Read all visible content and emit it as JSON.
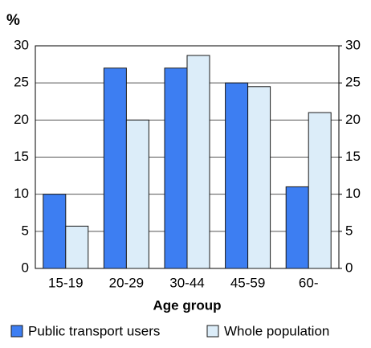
{
  "chart_data": {
    "type": "bar",
    "ylabel": "%",
    "xlabel": "Age group",
    "categories": [
      "15-19",
      "20-29",
      "30-44",
      "45-59",
      "60-"
    ],
    "series": [
      {
        "name": "Public transport users",
        "color": "#3d7ef2",
        "values": [
          10,
          27,
          27,
          25,
          11
        ]
      },
      {
        "name": "Whole population",
        "color": "#dcedf9",
        "values": [
          5.7,
          20,
          28.7,
          24.5,
          21
        ]
      }
    ],
    "ylim": [
      0,
      30
    ],
    "yticks": [
      0,
      5,
      10,
      15,
      20,
      25,
      30
    ],
    "y2lim": [
      0,
      30
    ],
    "y2ticks": [
      0,
      5,
      10,
      15,
      20,
      25,
      30
    ],
    "grid": true
  }
}
